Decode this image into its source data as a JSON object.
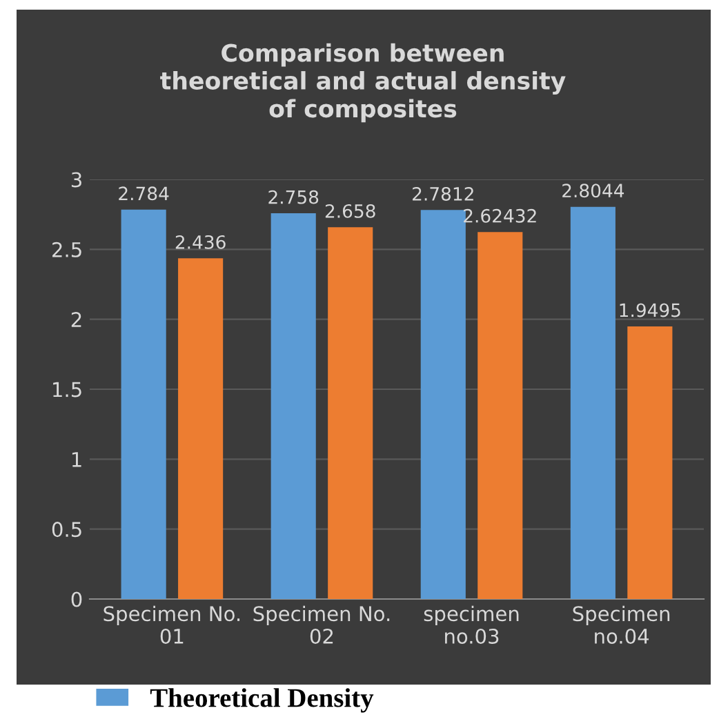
{
  "chart_data": {
    "type": "bar",
    "title": "Comparison between\ntheoretical and actual density\nof composites",
    "categories": [
      "Specimen No.\n01",
      "Specimen No.\n02",
      "specimen\nno.03",
      "Specimen\nno.04"
    ],
    "series": [
      {
        "name": "Theoretical Density",
        "color": "#5b9bd5",
        "values": [
          2.784,
          2.758,
          2.7812,
          2.8044
        ]
      },
      {
        "color": "#ed7d31",
        "values": [
          2.436,
          2.658,
          2.62432,
          1.9495
        ]
      }
    ],
    "ylim": [
      0,
      3
    ],
    "yticks": [
      0,
      0.5,
      1,
      1.5,
      2,
      2.5,
      3
    ],
    "grid": "y",
    "legend": "bottom",
    "data_labels": true
  }
}
